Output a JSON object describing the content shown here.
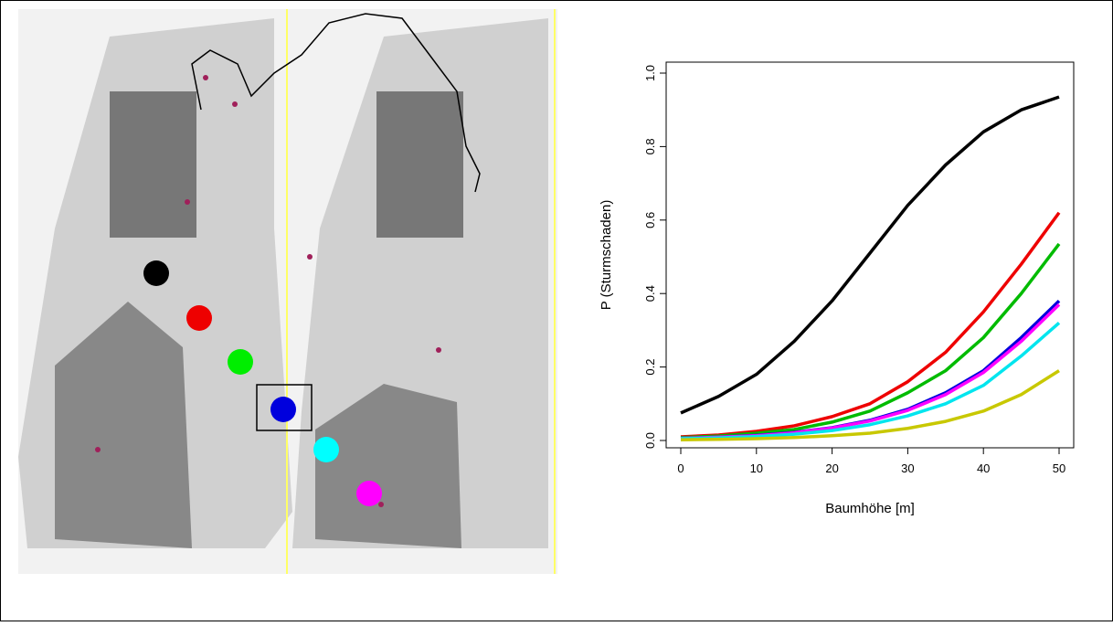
{
  "chart_data": {
    "type": "line",
    "xlabel": "Baumhöhe [m]",
    "ylabel": "P (Sturmschaden)",
    "x": [
      0,
      5,
      10,
      15,
      20,
      25,
      30,
      35,
      40,
      45,
      50
    ],
    "xlim": [
      0,
      50
    ],
    "xticks": [
      0,
      10,
      20,
      30,
      40,
      50
    ],
    "ylim": [
      0,
      1
    ],
    "yticks": [
      {
        "value": 0,
        "label": "0.0"
      },
      0.2,
      0.4,
      0.6,
      0.8,
      {
        "value": 1,
        "label": "1.0"
      }
    ],
    "series": [
      {
        "color": "#000000",
        "values": [
          0.075,
          0.12,
          0.18,
          0.27,
          0.38,
          0.51,
          0.64,
          0.75,
          0.84,
          0.9,
          0.935
        ]
      },
      {
        "color": "#ee0000",
        "values": [
          0.01,
          0.015,
          0.025,
          0.04,
          0.065,
          0.1,
          0.16,
          0.24,
          0.35,
          0.48,
          0.62
        ]
      },
      {
        "color": "#00bb00",
        "values": [
          0.008,
          0.012,
          0.02,
          0.03,
          0.05,
          0.08,
          0.13,
          0.19,
          0.28,
          0.4,
          0.535
        ]
      },
      {
        "color": "#0000dd",
        "values": [
          0.006,
          0.009,
          0.014,
          0.022,
          0.035,
          0.055,
          0.085,
          0.13,
          0.19,
          0.28,
          0.38
        ]
      },
      {
        "color": "#ff00ff",
        "values": [
          0.006,
          0.009,
          0.013,
          0.021,
          0.034,
          0.053,
          0.082,
          0.125,
          0.185,
          0.27,
          0.37
        ]
      },
      {
        "color": "#00e5ee",
        "values": [
          0.005,
          0.007,
          0.011,
          0.017,
          0.027,
          0.043,
          0.067,
          0.1,
          0.15,
          0.23,
          0.32
        ]
      },
      {
        "color": "#c8c800",
        "values": [
          0.002,
          0.003,
          0.005,
          0.008,
          0.013,
          0.02,
          0.033,
          0.052,
          0.08,
          0.125,
          0.19
        ]
      }
    ]
  }
}
